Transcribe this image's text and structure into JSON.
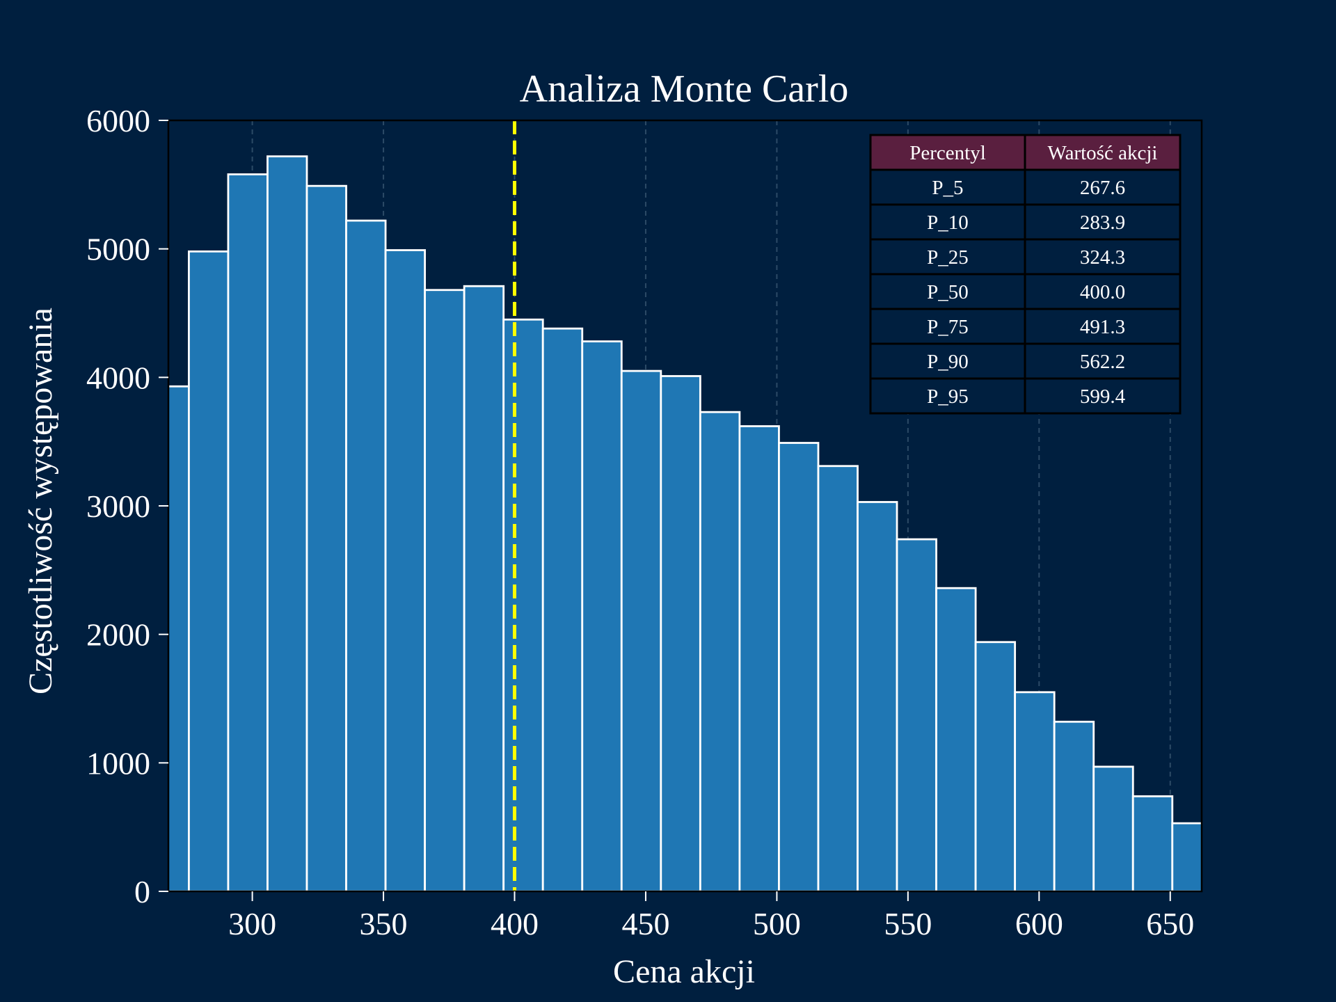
{
  "chart_data": {
    "type": "bar",
    "title": "Analiza Monte Carlo",
    "xlabel": "Cena akcji",
    "ylabel": "Częstotliwość występowania",
    "xlim": [
      268,
      662
    ],
    "ylim": [
      0,
      6000
    ],
    "xticks": [
      "300",
      "350",
      "400",
      "450",
      "500",
      "550",
      "600",
      "650"
    ],
    "yticks": [
      "0",
      "1000",
      "2000",
      "3000",
      "4000",
      "5000",
      "6000"
    ],
    "grid": "vertical dashed",
    "bins": [
      {
        "start": 260.8,
        "end": 275.8,
        "count": 3930
      },
      {
        "start": 275.8,
        "end": 290.8,
        "count": 4980
      },
      {
        "start": 290.8,
        "end": 305.8,
        "count": 5580
      },
      {
        "start": 305.8,
        "end": 320.8,
        "count": 5720
      },
      {
        "start": 320.8,
        "end": 335.8,
        "count": 5490
      },
      {
        "start": 335.8,
        "end": 350.8,
        "count": 5220
      },
      {
        "start": 350.8,
        "end": 365.8,
        "count": 4990
      },
      {
        "start": 365.8,
        "end": 380.8,
        "count": 4680
      },
      {
        "start": 380.8,
        "end": 395.8,
        "count": 4710
      },
      {
        "start": 395.8,
        "end": 410.8,
        "count": 4450
      },
      {
        "start": 410.8,
        "end": 425.8,
        "count": 4380
      },
      {
        "start": 425.8,
        "end": 440.8,
        "count": 4280
      },
      {
        "start": 440.8,
        "end": 455.8,
        "count": 4050
      },
      {
        "start": 455.8,
        "end": 470.8,
        "count": 4010
      },
      {
        "start": 470.8,
        "end": 485.8,
        "count": 3730
      },
      {
        "start": 485.8,
        "end": 500.8,
        "count": 3620
      },
      {
        "start": 500.8,
        "end": 515.8,
        "count": 3490
      },
      {
        "start": 515.8,
        "end": 530.8,
        "count": 3310
      },
      {
        "start": 530.8,
        "end": 545.8,
        "count": 3030
      },
      {
        "start": 545.8,
        "end": 560.8,
        "count": 2740
      },
      {
        "start": 560.8,
        "end": 575.8,
        "count": 2360
      },
      {
        "start": 575.8,
        "end": 590.8,
        "count": 1940
      },
      {
        "start": 590.8,
        "end": 605.8,
        "count": 1550
      },
      {
        "start": 605.8,
        "end": 620.8,
        "count": 1320
      },
      {
        "start": 620.8,
        "end": 635.8,
        "count": 970
      },
      {
        "start": 635.8,
        "end": 650.8,
        "count": 740
      },
      {
        "start": 650.8,
        "end": 665.8,
        "count": 530
      }
    ],
    "median_line": {
      "x": 400.0,
      "style": "dashed",
      "color": "#ffff00"
    },
    "table": {
      "headers": [
        "Percentyl",
        "Wartość akcji"
      ],
      "rows": [
        [
          "P_5",
          "267.6"
        ],
        [
          "P_10",
          "283.9"
        ],
        [
          "P_25",
          "324.3"
        ],
        [
          "P_50",
          "400.0"
        ],
        [
          "P_75",
          "491.3"
        ],
        [
          "P_90",
          "562.2"
        ],
        [
          "P_95",
          "599.4"
        ]
      ]
    }
  },
  "colors": {
    "background": "#001f3f",
    "bar_fill": "#1f77b4",
    "bar_edge": "#ffffff",
    "median": "#ffff00",
    "table_header": "#5a1f3f",
    "table_body": "#001f3f",
    "table_border": "#000000",
    "text": "#ffffff"
  }
}
